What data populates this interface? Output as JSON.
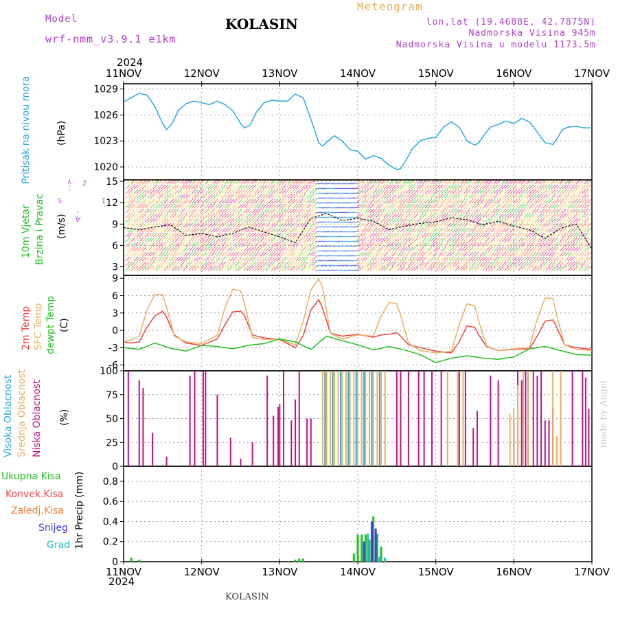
{
  "header": {
    "model_label": "Model",
    "model_value": "wrf-nmm_v3.9.1 e1km",
    "title": "KOLASIN",
    "meteogram": "Meteogram",
    "lonlat": "lon,lat (19.4688E, 42.7875N)",
    "elevation": "Nadmorska Visina 945m",
    "model_elevation": "Nadmorska Visina u modelu 1173.5m"
  },
  "footer": {
    "station": "KOLASIN",
    "watermark": "made by Angel"
  },
  "colors": {
    "purple": "#b040d0",
    "gold": "#e8b060",
    "cyan": "#2aa8e0",
    "green": "#20c020",
    "red": "#f04040",
    "orange": "#f08030",
    "blue": "#4040e0",
    "teal": "#20c0c0",
    "magenta": "#c0108a"
  },
  "chart_data": [
    {
      "type": "line",
      "panel": "pressure",
      "ylabel_lines": [
        "Pritisak na nivou mora",
        "(hPa)"
      ],
      "yticks": [
        1020,
        1023,
        1026,
        1029
      ],
      "ylim": [
        1018.5,
        1029.6
      ],
      "x_axis": {
        "year": "2024",
        "ticks": [
          "11NOV",
          "12NOV",
          "13NOV",
          "14NOV",
          "15NOV",
          "16NOV",
          "17NOV"
        ],
        "range_days": [
          0,
          6
        ]
      },
      "series": [
        {
          "x": [
            0,
            0.1,
            0.2,
            0.3,
            0.4,
            0.5,
            0.55,
            0.62,
            0.7,
            0.8,
            0.9,
            1.0,
            1.1,
            1.2,
            1.3,
            1.4,
            1.5,
            1.55,
            1.62,
            1.7,
            1.8,
            1.9,
            2.0,
            2.1,
            2.2,
            2.3,
            2.4,
            2.5,
            2.55,
            2.62,
            2.7,
            2.8,
            2.9,
            3.0,
            3.1,
            3.2,
            3.3,
            3.4,
            3.5,
            3.55,
            3.62,
            3.7,
            3.8,
            3.9,
            4.0,
            4.1,
            4.2,
            4.3,
            4.4,
            4.5,
            4.55,
            4.62,
            4.7,
            4.8,
            4.9,
            5.0,
            5.1,
            5.2,
            5.3,
            5.4,
            5.5,
            5.55,
            5.62,
            5.7,
            5.8,
            5.9,
            6.0
          ],
          "values": [
            1027.5,
            1028.0,
            1028.5,
            1028.3,
            1027.0,
            1025.0,
            1024.3,
            1025.0,
            1026.5,
            1027.3,
            1027.6,
            1027.4,
            1027.2,
            1027.6,
            1027.2,
            1026.5,
            1025.0,
            1024.5,
            1024.8,
            1026.3,
            1027.4,
            1027.7,
            1027.6,
            1027.6,
            1028.4,
            1028.0,
            1025.5,
            1022.8,
            1022.4,
            1023.0,
            1023.6,
            1023.0,
            1022.0,
            1021.8,
            1020.9,
            1021.3,
            1021.0,
            1020.2,
            1019.7,
            1019.8,
            1020.8,
            1022.1,
            1023.0,
            1023.3,
            1023.4,
            1024.6,
            1025.2,
            1024.6,
            1023.0,
            1022.5,
            1022.8,
            1023.7,
            1024.6,
            1024.9,
            1025.3,
            1025.0,
            1025.6,
            1025.2,
            1024.0,
            1022.8,
            1022.6,
            1023.2,
            1024.3,
            1024.6,
            1024.7,
            1024.5,
            1024.5
          ],
          "color": "#2aa8e0"
        }
      ]
    },
    {
      "type": "line",
      "panel": "wind",
      "ylabel_lines": [
        "10m Vjetar",
        "Brzina i Pravac",
        "(m/s)"
      ],
      "compass": [
        "Z",
        "I",
        "S",
        "J"
      ],
      "compass_marks": [
        "<--",
        "-->"
      ],
      "yticks": [
        3,
        6,
        9,
        12,
        15
      ],
      "ylim": [
        1.8,
        15.2
      ],
      "series": [
        {
          "x": [
            0,
            0.2,
            0.4,
            0.6,
            0.8,
            1.0,
            1.2,
            1.4,
            1.6,
            1.8,
            2.0,
            2.2,
            2.4,
            2.6,
            2.8,
            3.0,
            3.2,
            3.4,
            3.6,
            3.8,
            4.0,
            4.2,
            4.4,
            4.6,
            4.8,
            5.0,
            5.2,
            5.4,
            5.6,
            5.8,
            6.0
          ],
          "values": [
            8.5,
            8.2,
            8.6,
            8.9,
            7.4,
            7.7,
            7.2,
            7.7,
            8.6,
            7.9,
            7.2,
            6.4,
            9.8,
            10.5,
            9.5,
            9.8,
            9.4,
            8.2,
            8.7,
            9.1,
            9.3,
            9.9,
            9.6,
            8.9,
            9.4,
            8.7,
            8.2,
            7.0,
            8.4,
            9.0,
            5.5
          ],
          "color": "#000000"
        }
      ]
    },
    {
      "type": "line",
      "panel": "temperature",
      "ylabel_lines": [
        "2m Temp",
        "SFC Temp",
        "dewpt Temp",
        "(C)"
      ],
      "yticks": [
        -6,
        -3,
        0,
        3,
        6,
        9
      ],
      "ylim": [
        -7,
        9.5
      ],
      "series": [
        {
          "name": "2m Temp",
          "color": "#f04040",
          "x": [
            0,
            0.1,
            0.2,
            0.3,
            0.4,
            0.5,
            0.55,
            0.65,
            0.8,
            1.0,
            1.2,
            1.3,
            1.4,
            1.5,
            1.55,
            1.65,
            1.8,
            2.0,
            2.2,
            2.3,
            2.4,
            2.5,
            2.55,
            2.65,
            2.8,
            3.0,
            3.2,
            3.3,
            3.4,
            3.5,
            3.55,
            3.65,
            3.8,
            4.0,
            4.2,
            4.3,
            4.4,
            4.5,
            4.55,
            4.65,
            4.8,
            5.0,
            5.2,
            5.3,
            5.4,
            5.5,
            5.55,
            5.65,
            5.8,
            6.0
          ],
          "values": [
            -2.0,
            -2.2,
            -2.0,
            0.5,
            2.5,
            3.3,
            2.3,
            -0.8,
            -2.2,
            -2.6,
            -1.5,
            1.0,
            3.2,
            3.3,
            2.5,
            -0.8,
            -1.3,
            -1.6,
            -3.0,
            -1.0,
            3.5,
            5.3,
            3.8,
            -0.5,
            -1.0,
            -0.7,
            -1.2,
            -0.8,
            -0.7,
            -0.4,
            -1.0,
            -2.5,
            -3.0,
            -3.6,
            -3.9,
            -2.0,
            0.8,
            0.5,
            -0.8,
            -2.8,
            -3.5,
            -3.3,
            -3.2,
            -1.0,
            1.6,
            1.8,
            0.5,
            -2.5,
            -3.0,
            -3.3
          ]
        },
        {
          "name": "SFC Temp",
          "color": "#e8b060",
          "x": [
            0,
            0.1,
            0.2,
            0.3,
            0.4,
            0.5,
            0.55,
            0.65,
            0.8,
            1.0,
            1.2,
            1.3,
            1.4,
            1.5,
            1.55,
            1.65,
            1.8,
            2.0,
            2.2,
            2.3,
            2.4,
            2.5,
            2.55,
            2.65,
            2.8,
            3.0,
            3.2,
            3.3,
            3.4,
            3.5,
            3.55,
            3.65,
            3.8,
            4.0,
            4.2,
            4.3,
            4.4,
            4.5,
            4.55,
            4.65,
            4.8,
            5.0,
            5.2,
            5.3,
            5.4,
            5.5,
            5.55,
            5.65,
            5.8,
            6.0
          ],
          "values": [
            -2.0,
            -1.6,
            -1.0,
            3.5,
            6.2,
            6.2,
            4.0,
            -1.0,
            -2.0,
            -2.3,
            -0.8,
            4.0,
            7.1,
            6.8,
            4.5,
            -1.2,
            -1.6,
            -1.5,
            -2.5,
            1.5,
            7.0,
            8.9,
            7.5,
            -0.5,
            -1.5,
            -0.8,
            -1.0,
            2.5,
            4.8,
            4.6,
            2.5,
            -2.2,
            -3.5,
            -3.9,
            -3.6,
            1.0,
            4.6,
            4.2,
            1.5,
            -2.7,
            -3.5,
            -3.2,
            -3.0,
            2.0,
            5.6,
            5.5,
            2.5,
            -2.5,
            -3.3,
            -3.5
          ]
        },
        {
          "name": "dewpt Temp",
          "color": "#20c020",
          "x": [
            0,
            0.2,
            0.4,
            0.6,
            0.8,
            1.0,
            1.2,
            1.4,
            1.6,
            1.8,
            2.0,
            2.2,
            2.4,
            2.6,
            2.8,
            3.0,
            3.2,
            3.4,
            3.6,
            3.8,
            4.0,
            4.2,
            4.4,
            4.6,
            4.8,
            5.0,
            5.2,
            5.4,
            5.6,
            5.8,
            6.0
          ],
          "values": [
            -3.0,
            -3.3,
            -2.2,
            -3.1,
            -3.6,
            -2.6,
            -2.8,
            -3.2,
            -2.6,
            -2.3,
            -1.5,
            -2.0,
            -3.3,
            -1.0,
            -1.8,
            -2.5,
            -3.4,
            -2.8,
            -3.4,
            -4.2,
            -5.6,
            -4.8,
            -4.4,
            -4.8,
            -5.0,
            -4.6,
            -3.2,
            -2.8,
            -3.5,
            -4.2,
            -4.3
          ]
        }
      ]
    },
    {
      "type": "bar",
      "panel": "cloud",
      "ylabel_lines": [
        "Visoka Oblacnost",
        "Srednja Oblacnost",
        "Niska Oblacnost",
        "(%)"
      ],
      "yticks": [
        0,
        25,
        50,
        75,
        100
      ],
      "ylim": [
        0,
        100
      ],
      "series": [
        {
          "name": "Niska Oblacnost",
          "color": "#c0108a",
          "x": [
            0.06,
            0.2,
            0.25,
            0.37,
            0.55,
            0.85,
            0.91,
            1.02,
            1.05,
            1.2,
            1.37,
            1.5,
            1.65,
            1.84,
            1.92,
            1.98,
            2.0,
            2.05,
            2.15,
            2.2,
            2.25,
            2.35,
            2.4,
            3.5,
            3.55,
            3.65,
            3.78,
            3.85,
            3.95,
            4.07,
            4.3,
            4.38,
            4.48,
            4.53,
            4.7,
            4.8,
            5.0,
            5.05,
            5.1,
            5.15,
            5.18,
            5.25,
            5.3,
            5.35,
            5.4,
            5.45,
            5.5,
            5.6,
            5.75,
            5.88,
            5.92,
            5.96
          ],
          "values": [
            100,
            90,
            82,
            35,
            10,
            95,
            100,
            100,
            100,
            75,
            30,
            8,
            25,
            95,
            53,
            62,
            65,
            100,
            48,
            70,
            100,
            50,
            50,
            100,
            100,
            100,
            100,
            100,
            100,
            100,
            100,
            100,
            40,
            58,
            95,
            90,
            50,
            100,
            90,
            100,
            100,
            100,
            95,
            100,
            48,
            48,
            60,
            95,
            100,
            100,
            93,
            60
          ]
        },
        {
          "name": "Srednja Oblacnost",
          "color": "#e8b060",
          "x": [
            2.55,
            2.6,
            2.65,
            2.7,
            2.75,
            2.8,
            2.85,
            2.9,
            2.95,
            3.0,
            3.05,
            3.1,
            3.15,
            3.2,
            3.25,
            3.3,
            3.35,
            4.15,
            4.28,
            4.35,
            4.95,
            5.0,
            5.05,
            5.12,
            5.18,
            5.5,
            5.55,
            5.6
          ],
          "values": [
            100,
            100,
            100,
            100,
            100,
            100,
            100,
            100,
            100,
            100,
            100,
            100,
            100,
            100,
            100,
            100,
            100,
            100,
            100,
            100,
            55,
            60,
            85,
            100,
            100,
            100,
            32,
            100
          ]
        },
        {
          "name": "Visoka Oblacnost",
          "color": "#2aa8e0",
          "x": [
            2.58,
            2.68,
            2.78,
            2.88,
            2.98,
            3.08,
            3.18,
            3.28
          ],
          "values": [
            100,
            100,
            100,
            100,
            100,
            100,
            100,
            100
          ]
        }
      ]
    },
    {
      "type": "bar",
      "panel": "precip",
      "ylabel_lines": [
        "1hr Precip (mm)"
      ],
      "legend": [
        "Ukupna Kisa",
        "Konvek.Kisa",
        "Zaledj.Kisa",
        "Snijeg",
        "Grad"
      ],
      "yticks": [
        0,
        0.2,
        0.4,
        0.6,
        0.8
      ],
      "ylim": [
        0,
        0.95
      ],
      "series": [
        {
          "name": "Ukupna Kisa",
          "color": "#20c020",
          "x": [
            0.1,
            0.2,
            2.2,
            2.25,
            2.3,
            2.95,
            3.0,
            3.05,
            3.1,
            3.15,
            3.2,
            3.25,
            3.3
          ],
          "values": [
            0.04,
            0.02,
            0.02,
            0.03,
            0.03,
            0.08,
            0.27,
            0.27,
            0.27,
            0.22,
            0.45,
            0.28,
            0.15
          ]
        },
        {
          "name": "Snijeg",
          "color": "#4040e0",
          "x": [
            3.08,
            3.18,
            3.23
          ],
          "values": [
            0.2,
            0.4,
            0.33
          ]
        },
        {
          "name": "Grad",
          "color": "#20c0c0",
          "x": [
            3.13,
            3.28,
            3.35
          ],
          "values": [
            0.28,
            0.05,
            0.04
          ]
        }
      ]
    }
  ]
}
